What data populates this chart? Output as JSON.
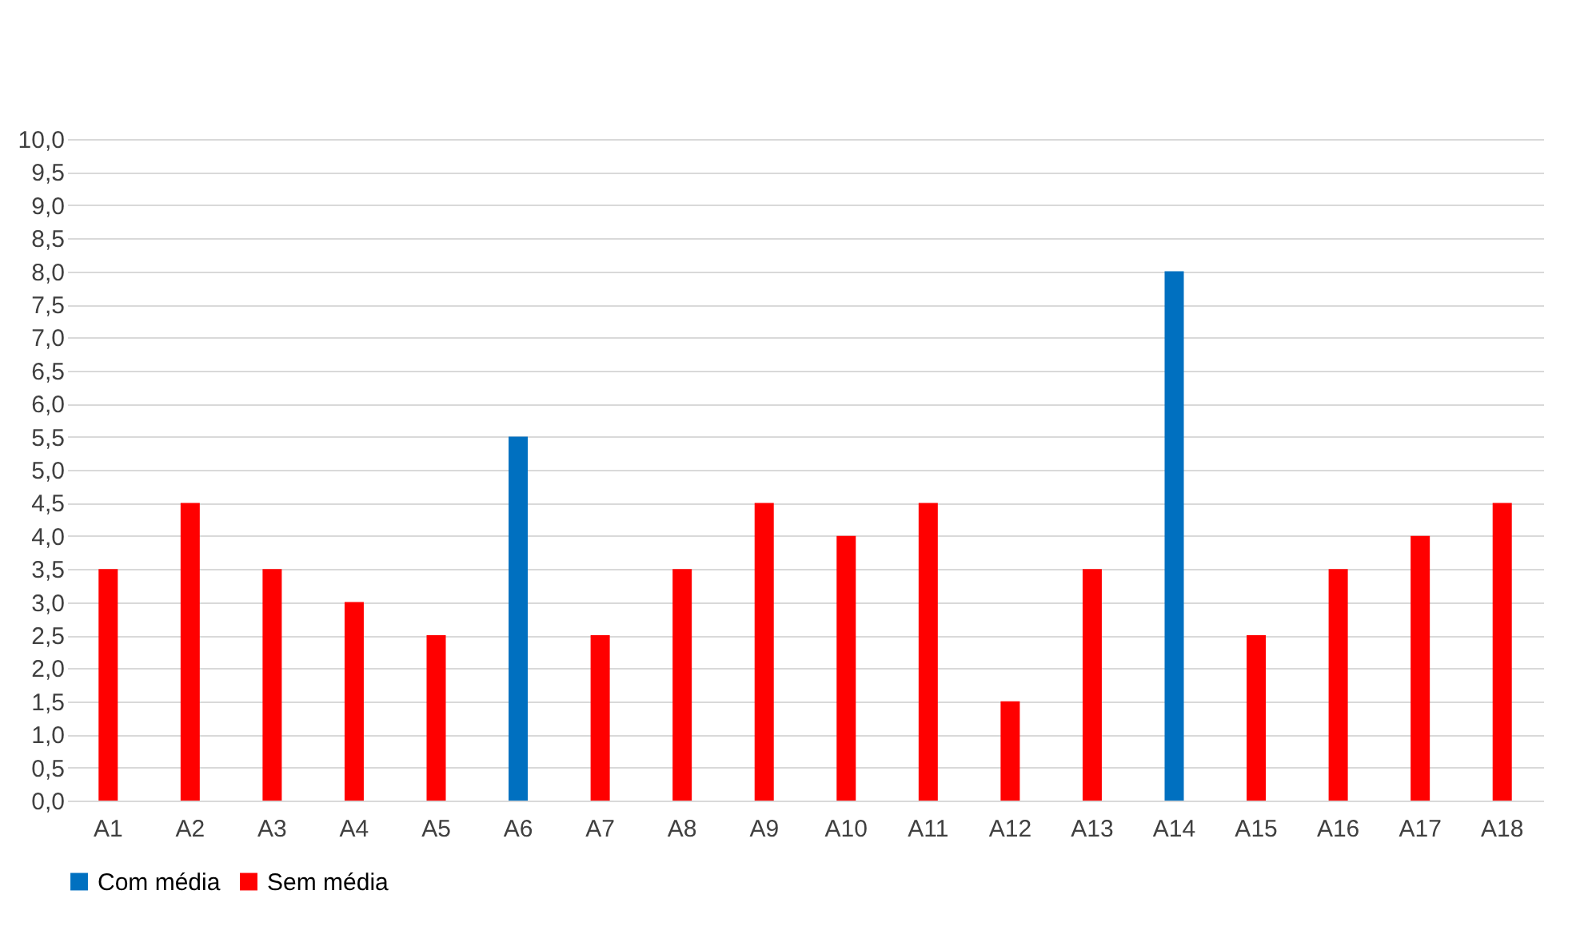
{
  "chart_data": {
    "type": "bar",
    "categories": [
      "A1",
      "A2",
      "A3",
      "A4",
      "A5",
      "A6",
      "A7",
      "A8",
      "A9",
      "A10",
      "A11",
      "A12",
      "A13",
      "A14",
      "A15",
      "A16",
      "A17",
      "A18"
    ],
    "series": [
      {
        "name": "Com média",
        "color": "#0070c0",
        "values": [
          null,
          null,
          null,
          null,
          null,
          5.5,
          null,
          null,
          null,
          null,
          null,
          null,
          null,
          8.0,
          null,
          null,
          null,
          null
        ]
      },
      {
        "name": "Sem média",
        "color": "#ff0000",
        "values": [
          3.5,
          4.5,
          3.5,
          3.0,
          2.5,
          null,
          2.5,
          3.5,
          4.5,
          4.0,
          4.5,
          1.5,
          3.5,
          null,
          2.5,
          3.5,
          4.0,
          4.5
        ]
      }
    ],
    "ylim": [
      0,
      10
    ],
    "yticks": [
      {
        "value": 0,
        "label": "0,0"
      },
      {
        "value": 0.5,
        "label": "0,5"
      },
      {
        "value": 1,
        "label": "1,0"
      },
      {
        "value": 1.5,
        "label": "1,5"
      },
      {
        "value": 2,
        "label": "2,0"
      },
      {
        "value": 2.5,
        "label": "2,5"
      },
      {
        "value": 3,
        "label": "3,0"
      },
      {
        "value": 3.5,
        "label": "3,5"
      },
      {
        "value": 4,
        "label": "4,0"
      },
      {
        "value": 4.5,
        "label": "4,5"
      },
      {
        "value": 5,
        "label": "5,0"
      },
      {
        "value": 5.5,
        "label": "5,5"
      },
      {
        "value": 6,
        "label": "6,0"
      },
      {
        "value": 6.5,
        "label": "6,5"
      },
      {
        "value": 7,
        "label": "7,0"
      },
      {
        "value": 7.5,
        "label": "7,5"
      },
      {
        "value": 8,
        "label": "8,0"
      },
      {
        "value": 8.5,
        "label": "8,5"
      },
      {
        "value": 9,
        "label": "9,0"
      },
      {
        "value": 9.5,
        "label": "9,5"
      },
      {
        "value": 10,
        "label": "10,0"
      }
    ],
    "grid": "y",
    "legend": "bottom"
  }
}
